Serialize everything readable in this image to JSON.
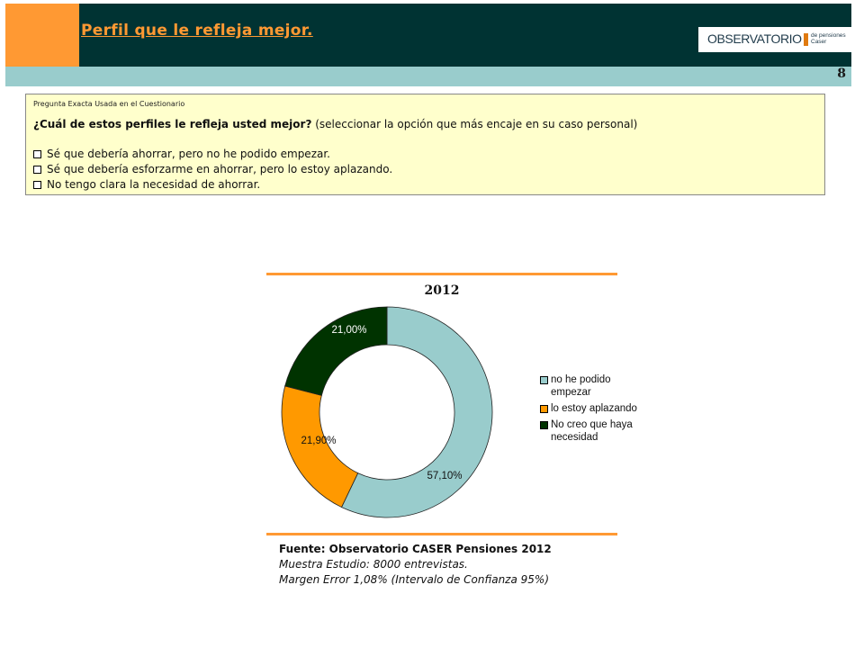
{
  "header": {
    "title": "Perfil que le refleja mejor.",
    "logo_main": "OBSERVATORIO",
    "logo_sub_1": "de pensiones",
    "logo_sub_2": "Caser",
    "page_number": "8",
    "colors": {
      "orange": "#ff9933",
      "dark": "#003333",
      "teal": "#99cccc"
    }
  },
  "question": {
    "caption": "Pregunta Exacta Usada en el Cuestionario",
    "text_bold": "¿Cuál de estos perfiles le refleja usted mejor?",
    "text_rest": " (seleccionar la opción que más encaje en su caso personal)",
    "options": [
      "Sé que debería ahorrar, pero no he podido empezar.",
      "Sé que debería esforzarme en ahorrar, pero lo estoy aplazando.",
      "No tengo clara la necesidad de ahorrar."
    ],
    "background": "#ffffcc"
  },
  "chart_data": {
    "type": "pie",
    "variant": "doughnut",
    "title": "2012",
    "categories": [
      "no he podido empezar",
      "lo estoy aplazando",
      "No creo que haya necesidad"
    ],
    "values": [
      57.1,
      21.9,
      21.0
    ],
    "labels": [
      "57,10%",
      "21,90%",
      "21,00%"
    ],
    "colors": [
      "#99cccc",
      "#ff9900",
      "#003300"
    ],
    "legend_position": "right"
  },
  "source": {
    "title": "Fuente: Observatorio CASER Pensiones 2012",
    "line1": "Muestra Estudio: 8000 entrevistas.",
    "line2": "Margen Error 1,08% (Intervalo de Confianza 95%)"
  }
}
